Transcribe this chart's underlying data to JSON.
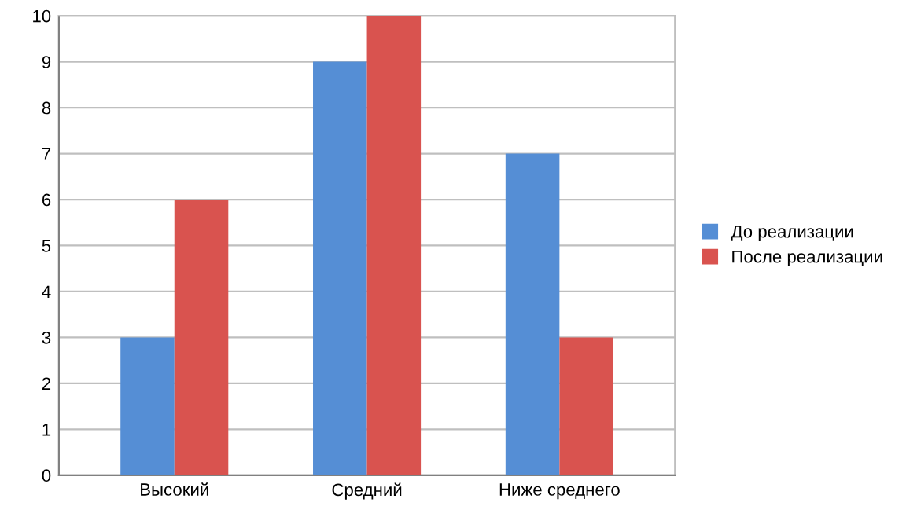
{
  "chart_data": {
    "type": "bar",
    "categories": [
      "Высокий",
      "Средний",
      "Ниже среднего"
    ],
    "series": [
      {
        "name": "До реализации",
        "color": "#558ed5",
        "values": [
          3,
          9,
          7
        ]
      },
      {
        "name": "После реализации",
        "color": "#d9534f",
        "values": [
          6,
          10,
          3
        ]
      }
    ],
    "ylim": [
      0,
      10
    ],
    "yticks": [
      0,
      1,
      2,
      3,
      4,
      5,
      6,
      7,
      8,
      9,
      10
    ],
    "grid": "y",
    "legend": "right"
  }
}
